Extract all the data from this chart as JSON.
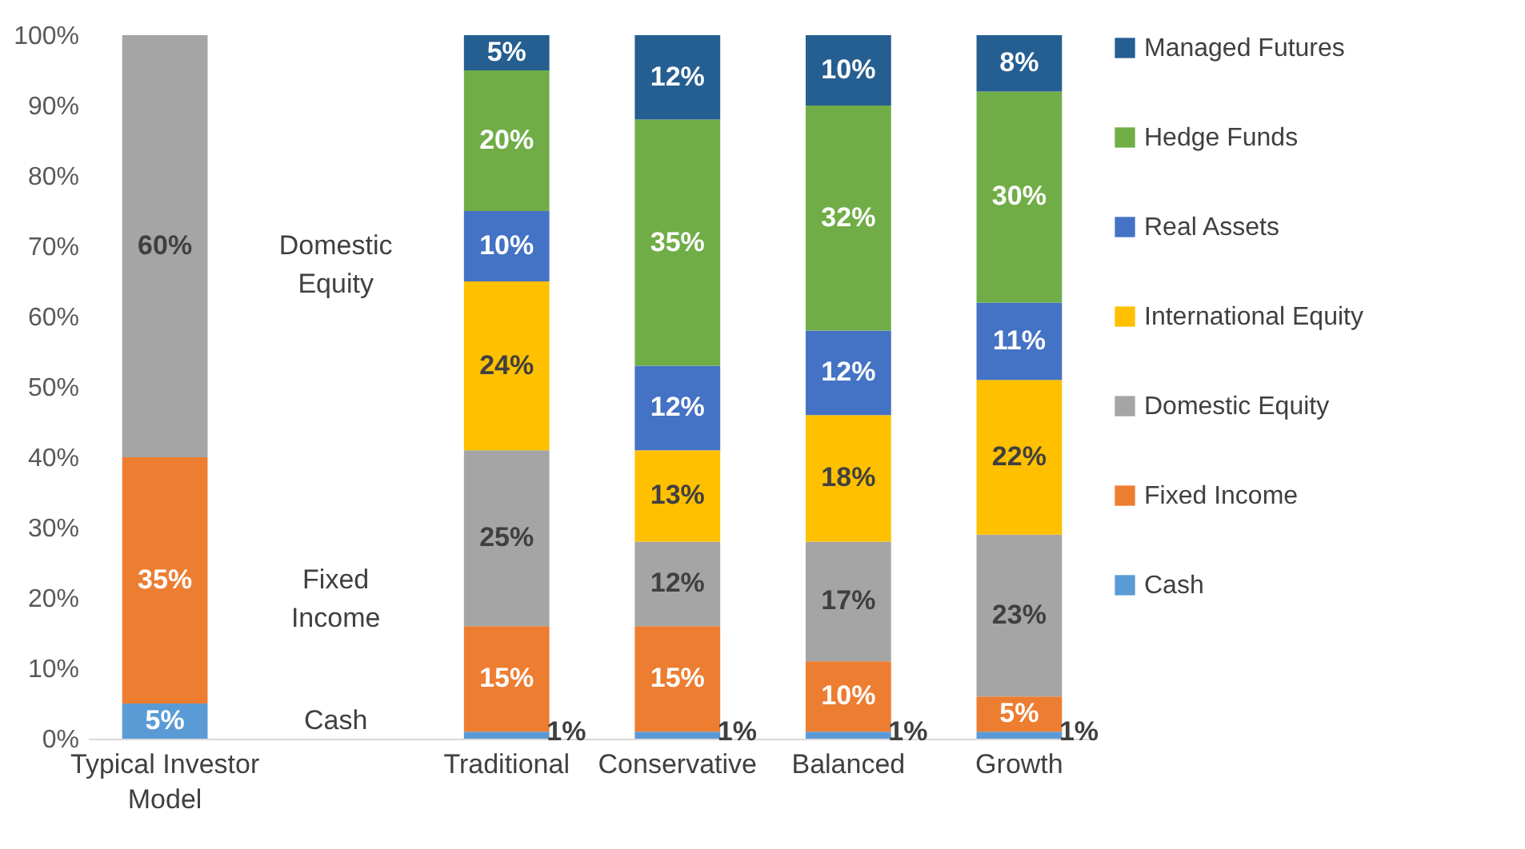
{
  "chart_data": {
    "type": "bar",
    "stacked": true,
    "categories": [
      "Typical Investor Model",
      null,
      "Traditional",
      "Conservative",
      "Balanced",
      "Growth"
    ],
    "series": [
      {
        "name": "Cash",
        "color": "#5b9bd5",
        "values": [
          5,
          null,
          1,
          1,
          1,
          1
        ],
        "value_labels": [
          "5%",
          null,
          "1%",
          "1%",
          "1%",
          "1%"
        ]
      },
      {
        "name": "Fixed Income",
        "color": "#ed7d31",
        "values": [
          35,
          null,
          15,
          15,
          10,
          5
        ],
        "value_labels": [
          "35%",
          null,
          "15%",
          "15%",
          "10%",
          "5%"
        ]
      },
      {
        "name": "Domestic Equity",
        "color": "#a5a5a5",
        "values": [
          60,
          null,
          25,
          12,
          17,
          23
        ],
        "value_labels": [
          "60%",
          null,
          "25%",
          "12%",
          "17%",
          "23%"
        ]
      },
      {
        "name": "International Equity",
        "color": "#ffc000",
        "values": [
          null,
          null,
          24,
          13,
          18,
          22
        ],
        "value_labels": [
          null,
          null,
          "24%",
          "13%",
          "18%",
          "22%"
        ]
      },
      {
        "name": "Real Assets",
        "color": "#4472c4",
        "values": [
          null,
          null,
          10,
          12,
          12,
          11
        ],
        "value_labels": [
          null,
          null,
          "10%",
          "12%",
          "12%",
          "11%"
        ]
      },
      {
        "name": "Hedge Funds",
        "color": "#70ad47",
        "values": [
          null,
          null,
          20,
          35,
          32,
          30
        ],
        "value_labels": [
          null,
          null,
          "20%",
          "35%",
          "32%",
          "30%"
        ]
      },
      {
        "name": "Managed Futures",
        "color": "#255e91",
        "values": [
          null,
          null,
          5,
          12,
          10,
          8
        ],
        "value_labels": [
          null,
          null,
          "5%",
          "12%",
          "10%",
          "8%"
        ]
      }
    ],
    "ylim": [
      0,
      100
    ],
    "yticks": [
      {
        "value": 0,
        "label": "0%"
      },
      {
        "value": 10,
        "label": "10%"
      },
      {
        "value": 20,
        "label": "20%"
      },
      {
        "value": 30,
        "label": "30%"
      },
      {
        "value": 40,
        "label": "40%"
      },
      {
        "value": 50,
        "label": "50%"
      },
      {
        "value": 60,
        "label": "60%"
      },
      {
        "value": 70,
        "label": "70%"
      },
      {
        "value": 80,
        "label": "80%"
      },
      {
        "value": 90,
        "label": "90%"
      },
      {
        "value": 100,
        "label": "100%"
      }
    ],
    "legend": "right",
    "grid": false,
    "annotations": [
      "Domestic Equity",
      "Fixed Income",
      "Cash"
    ]
  }
}
